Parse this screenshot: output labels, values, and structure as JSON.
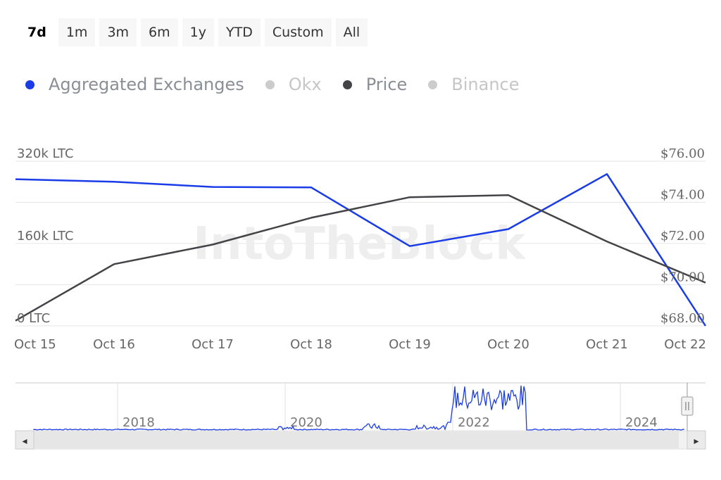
{
  "range_selector": {
    "buttons": [
      "7d",
      "1m",
      "3m",
      "6m",
      "1y",
      "YTD",
      "Custom",
      "All"
    ],
    "active": "7d"
  },
  "legend": [
    {
      "label": "Aggregated Exchanges",
      "color": "#1a3ce8",
      "visible": true
    },
    {
      "label": "Okx",
      "color": "#cccccc",
      "visible": false
    },
    {
      "label": "Price",
      "color": "#434348",
      "visible": true
    },
    {
      "label": "Binance",
      "color": "#cccccc",
      "visible": false
    }
  ],
  "watermark": "IntoTheBlock",
  "chart_data": {
    "type": "line",
    "x": [
      "Oct 15",
      "Oct 16",
      "Oct 17",
      "Oct 18",
      "Oct 19",
      "Oct 20",
      "Oct 21",
      "Oct 22"
    ],
    "y_left": {
      "ticks": [
        "0 LTC",
        "160k LTC",
        "320k LTC"
      ],
      "range": [
        0,
        320000
      ]
    },
    "y_right": {
      "ticks": [
        "$68.00",
        "$70.00",
        "$72.00",
        "$74.00",
        "$76.00"
      ],
      "range": [
        68,
        76
      ]
    },
    "series": [
      {
        "name": "Aggregated Exchanges",
        "axis": "left",
        "color": "#1a3ce8",
        "values": [
          285000,
          280000,
          270000,
          269000,
          155000,
          188000,
          295000,
          0
        ]
      },
      {
        "name": "Price",
        "axis": "right",
        "color": "#434348",
        "values": [
          68.25,
          71.0,
          71.95,
          73.25,
          74.25,
          74.35,
          72.1,
          70.1
        ]
      }
    ],
    "grid": true
  },
  "navigator": {
    "year_labels": [
      "2018",
      "2020",
      "2022",
      "2024"
    ],
    "scroll_left": "◂",
    "scroll_right": "▸"
  }
}
